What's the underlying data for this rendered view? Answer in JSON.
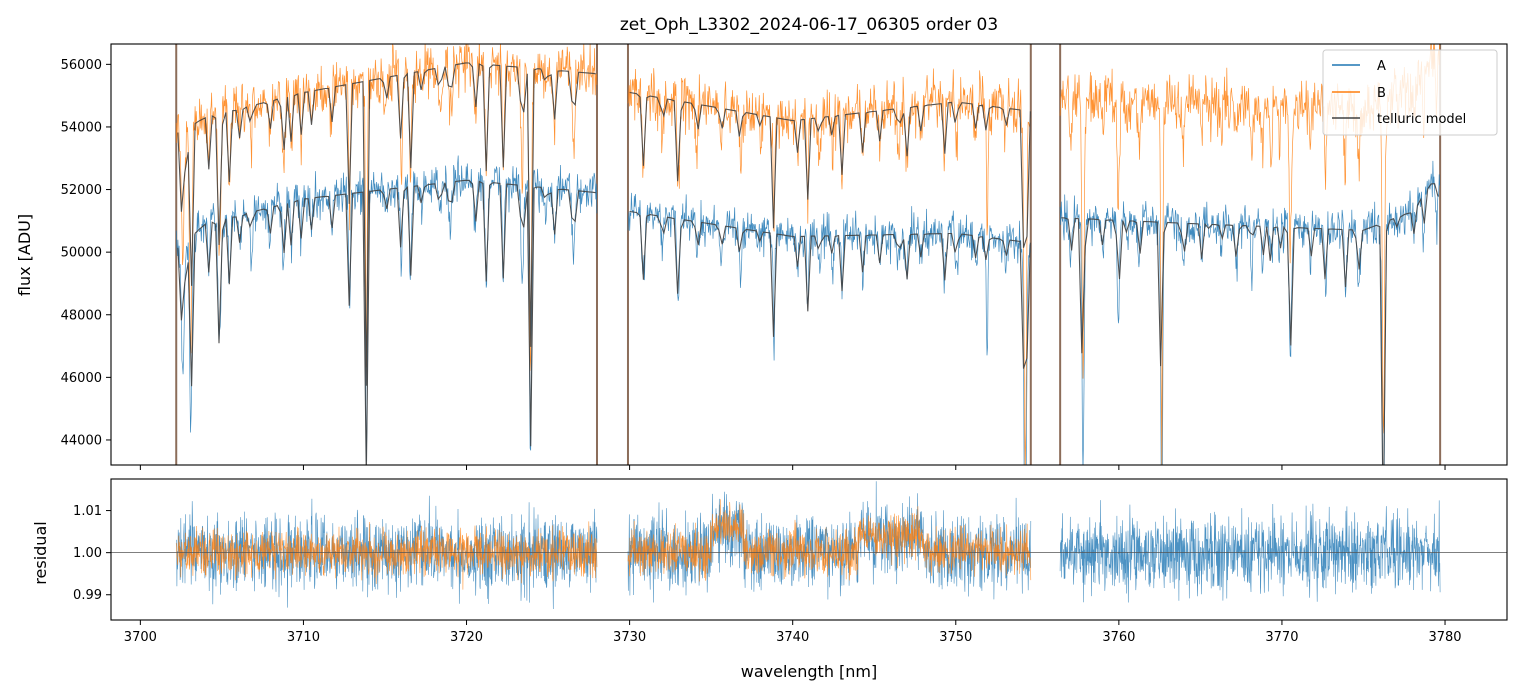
{
  "chart_data": [
    {
      "type": "line",
      "panel": "top",
      "title": "zet_Oph_L3302_2024-06-17_06305  order 03",
      "xlabel": "",
      "ylabel": "flux [ADU]",
      "xlim": [
        3698.2,
        3783.8
      ],
      "ylim": [
        43200,
        56650
      ],
      "yticks": [
        44000,
        46000,
        48000,
        50000,
        52000,
        54000,
        56000
      ],
      "ytick_labels": [
        "44000",
        "46000",
        "48000",
        "50000",
        "52000",
        "54000",
        "56000"
      ],
      "xticks": [
        3700,
        3710,
        3720,
        3730,
        3740,
        3750,
        3760,
        3770,
        3780
      ],
      "segments": [
        [
          3702.2,
          3728.0
        ],
        [
          3729.9,
          3754.6
        ],
        [
          3756.4,
          3779.7
        ]
      ],
      "gap_markers_nm": [
        3702.2,
        3728.0,
        3729.9,
        3754.6,
        3756.4,
        3779.7
      ],
      "series": [
        {
          "name": "A",
          "color": "#1f77b4",
          "continuum_nm": [
            3702.2,
            3704,
            3710,
            3720,
            3728,
            3730,
            3740,
            3750,
            3754.6,
            3756.4,
            3765,
            3775,
            3778,
            3779.7
          ],
          "continuum_adu": [
            50100,
            50900,
            51700,
            52300,
            51900,
            51300,
            50500,
            50600,
            50300,
            51100,
            50900,
            50700,
            51300,
            52600
          ],
          "noise_adu": 320
        },
        {
          "name": "B",
          "color": "#ff7f0e",
          "continuum_nm": [
            3702.2,
            3704,
            3710,
            3720,
            3728,
            3730,
            3740,
            3750,
            3754.6,
            3756.4,
            3765,
            3775,
            3778,
            3779.7
          ],
          "continuum_adu": [
            53800,
            54300,
            55100,
            56050,
            55700,
            55100,
            54200,
            54800,
            54500,
            55000,
            54800,
            54600,
            55300,
            56500
          ],
          "noise_adu": 420
        },
        {
          "name": "telluric model",
          "color": "#404040",
          "note": "smoothed model tracing both A and B, absent beyond 3756 nm for B"
        }
      ],
      "legend": {
        "position": "top-right",
        "entries": [
          "A",
          "B",
          "telluric model"
        ]
      }
    },
    {
      "type": "line",
      "panel": "bottom",
      "xlabel": "wavelength [nm]",
      "ylabel": "residual",
      "xlim": [
        3698.2,
        3783.8
      ],
      "ylim": [
        0.984,
        1.0175
      ],
      "yticks": [
        0.99,
        1.0,
        1.01
      ],
      "ytick_labels": [
        "0.99",
        "1.00",
        "1.01"
      ],
      "xticks": [
        3700,
        3710,
        3720,
        3730,
        3740,
        3750,
        3760,
        3770,
        3780
      ],
      "xtick_labels": [
        "3700",
        "3710",
        "3720",
        "3730",
        "3740",
        "3750",
        "3760",
        "3770",
        "3780"
      ],
      "reference_line": 1.0,
      "series": [
        {
          "name": "A",
          "color": "#1f77b4",
          "segments": [
            [
              3702.2,
              3728.0
            ],
            [
              3729.9,
              3754.6
            ],
            [
              3756.4,
              3779.7
            ]
          ],
          "noise": 0.0045
        },
        {
          "name": "B",
          "color": "#ff7f0e",
          "segments": [
            [
              3702.2,
              3728.0
            ],
            [
              3729.9,
              3754.6
            ]
          ],
          "noise": 0.0028
        }
      ]
    }
  ]
}
